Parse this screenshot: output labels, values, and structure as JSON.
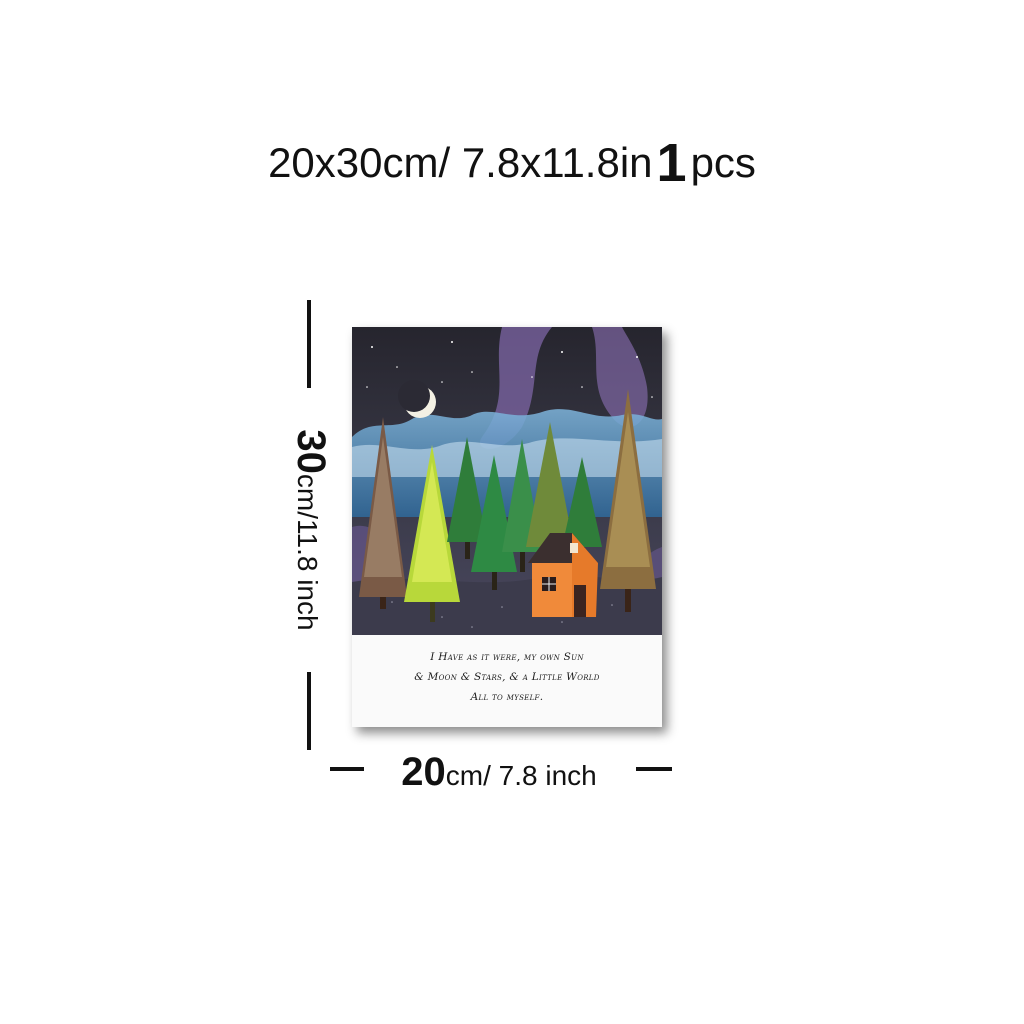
{
  "title": {
    "dimensions": "20x30cm/ 7.8x11.8in",
    "quantity_number": "1",
    "quantity_unit": "pcs"
  },
  "height_label": {
    "number": "30",
    "unit_text": "cm/11.8 inch"
  },
  "width_label": {
    "number": "20",
    "unit_text": "cm/ 7.8 inch"
  },
  "poster": {
    "quote_lines": [
      "I Have as it were, my own Sun",
      "& Moon & Stars, & a Little World",
      "All to myself."
    ]
  },
  "colors": {
    "night_sky": "#2c2a35",
    "milky_way": "#8a6fb0",
    "house": "#f08a3a",
    "text": "#111111"
  }
}
